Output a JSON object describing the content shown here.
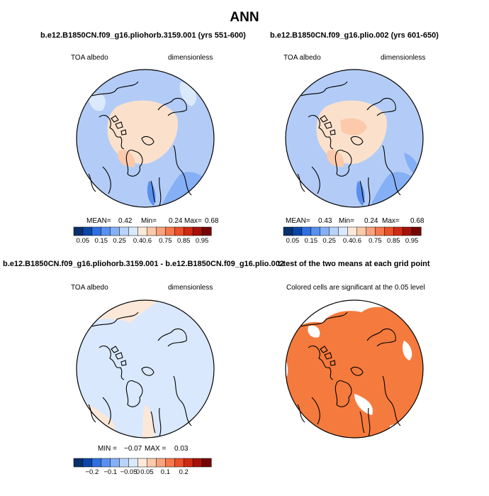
{
  "page_title": "ANN",
  "colors": {
    "palette": [
      "#08306b",
      "#0b45a8",
      "#2f6fe0",
      "#5a90ee",
      "#86b0f5",
      "#b9d3fa",
      "#dbe9fd",
      "#fde9da",
      "#fcc9ab",
      "#f9a27e",
      "#f5794f",
      "#ea5129",
      "#cf2a14",
      "#a41209",
      "#750505"
    ],
    "ocean_base": "#b3ccf7",
    "land_base": "#fbe1cc",
    "diff_positive": "#fce8d8",
    "diff_negative": "#d9e8fc",
    "significant": "#f57a3d",
    "coast": "#000000"
  },
  "panels": [
    {
      "id": "case1",
      "case_title": "b.e12.B1850CN.f09_g16.pliohorb.3159.001 (yrs 551-600)",
      "left_label": "TOA albedo",
      "right_label": "dimensionless",
      "stats": {
        "mean_label": "MEAN=",
        "mean": "0.42",
        "min_label": "Min=",
        "min": "0.24",
        "max_label": "Max=",
        "max": "0.68"
      },
      "colorbar_ticks": [
        "0.05",
        "0.15",
        "0.25",
        "0.4",
        "0.6",
        "0.75",
        "0.85",
        "0.95"
      ]
    },
    {
      "id": "case2",
      "case_title": "b.e12.B1850CN.f09_g16.plio.002 (yrs 601-650)",
      "left_label": "TOA albedo",
      "right_label": "dimensionless",
      "stats": {
        "mean_label": "MEAN=",
        "mean": "0.43",
        "min_label": "Min=",
        "min": "0.24",
        "max_label": "Max=",
        "max": "0.68"
      },
      "colorbar_ticks": [
        "0.05",
        "0.15",
        "0.25",
        "0.4",
        "0.6",
        "0.75",
        "0.85",
        "0.95"
      ]
    },
    {
      "id": "diff",
      "case_title": "b.e12.B1850CN.f09_g16.pliohorb.3159.001 - b.e12.B1850CN.f09_g16.plio.002",
      "left_label": "TOA albedo",
      "right_label": "dimensionless",
      "stats": {
        "min_label": "MIN =",
        "min": "−0.07",
        "max_label": "MAX =",
        "max": "0.03"
      },
      "colorbar_ticks": [
        "−0.2",
        "−0.1",
        "−0.05",
        "0",
        "0.05",
        "0.1",
        "0.2"
      ]
    },
    {
      "id": "ttest",
      "case_title": "t-test of the two means at each grid point",
      "subtitle": "Colored cells are significant at the 0.05 level"
    }
  ]
}
